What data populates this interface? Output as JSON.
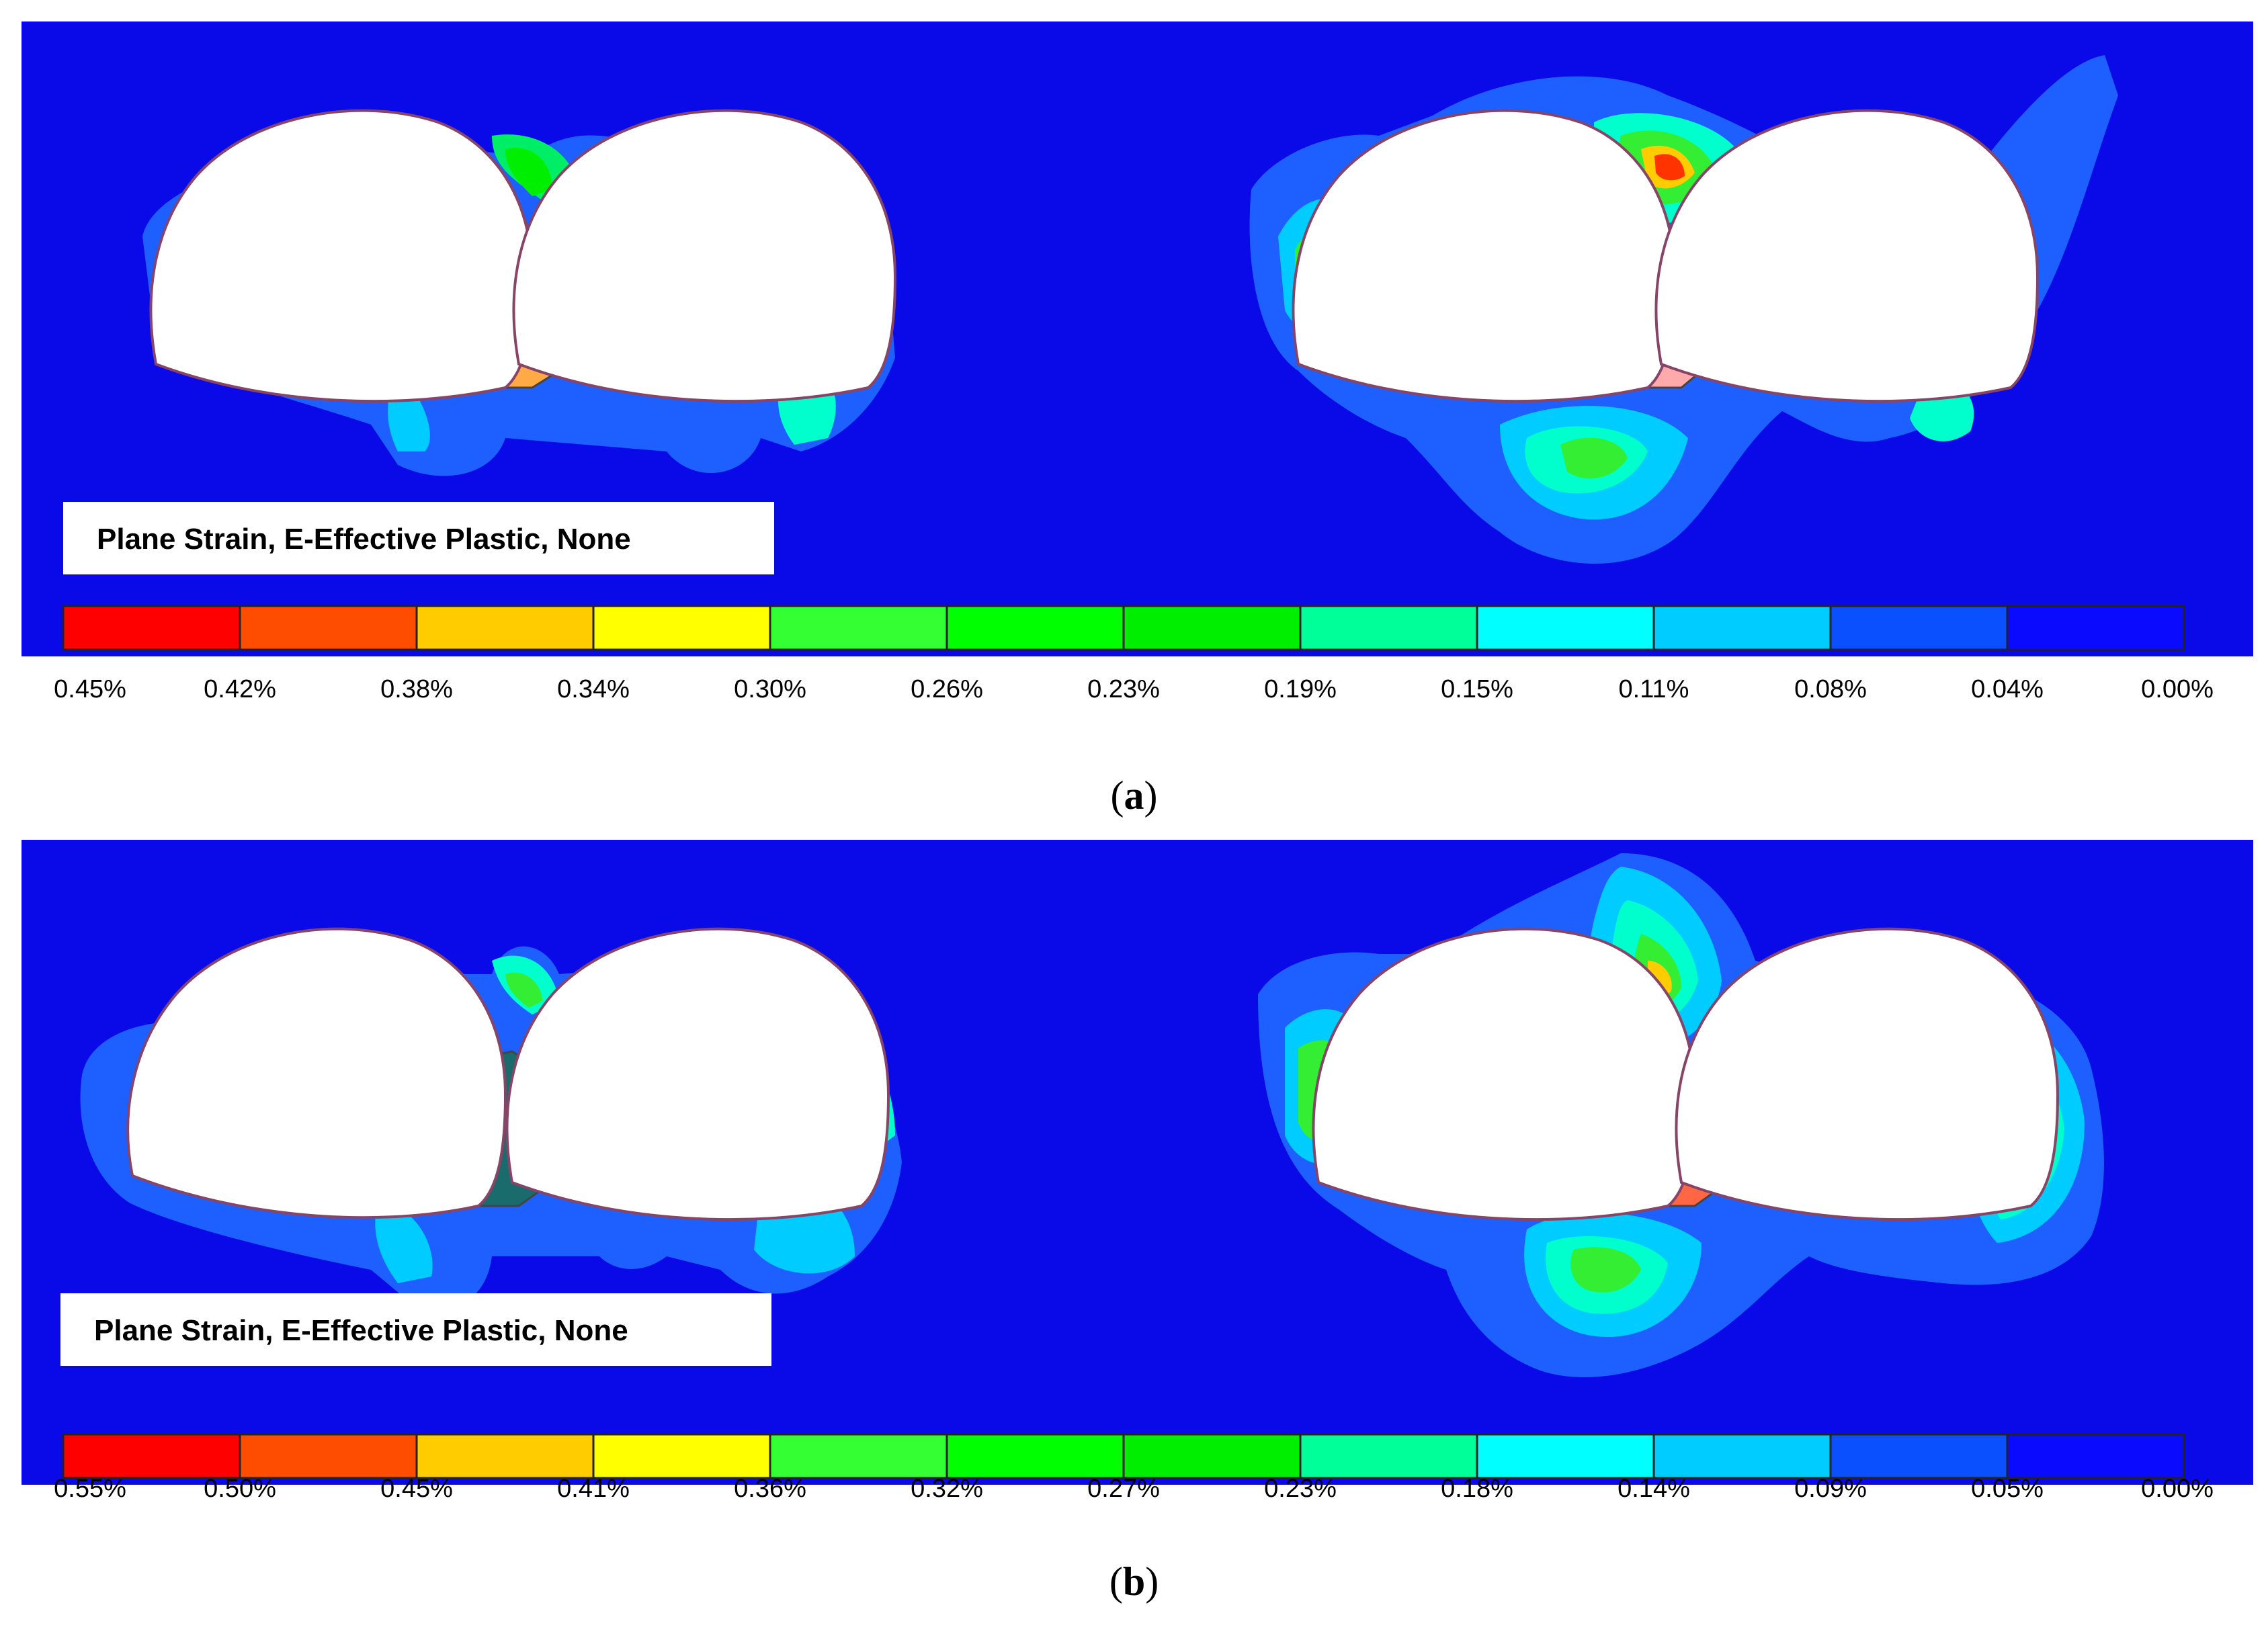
{
  "colors": {
    "background": "#0a0ae8",
    "ramp": [
      "#ff0000",
      "#ff4d00",
      "#ffcc00",
      "#ffff00",
      "#33ff33",
      "#00ff00",
      "#00ee00",
      "#00ff99",
      "#00ffff",
      "#00ccff",
      "#0a50ff",
      "#0a0aff"
    ]
  },
  "panels": [
    {
      "legend_box_text": "Plane Strain, E-Effective Plastic, None",
      "ticks": [
        "0.45%",
        "0.42%",
        "0.38%",
        "0.34%",
        "0.30%",
        "0.26%",
        "0.23%",
        "0.19%",
        "0.15%",
        "0.11%",
        "0.08%",
        "0.04%",
        "0.00%"
      ],
      "caption_letter": "a",
      "pillar_colors": {
        "left": "#ffaa44",
        "right": "#ffaaaa"
      }
    },
    {
      "legend_box_text": "Plane Strain, E-Effective Plastic, None",
      "ticks": [
        "0.55%",
        "0.50%",
        "0.45%",
        "0.41%",
        "0.36%",
        "0.32%",
        "0.27%",
        "0.23%",
        "0.18%",
        "0.14%",
        "0.09%",
        "0.05%",
        "0.00%"
      ],
      "caption_letter": "b",
      "pillar_colors": {
        "left": "#1a6b6b",
        "right": "#ff6644"
      }
    }
  ]
}
